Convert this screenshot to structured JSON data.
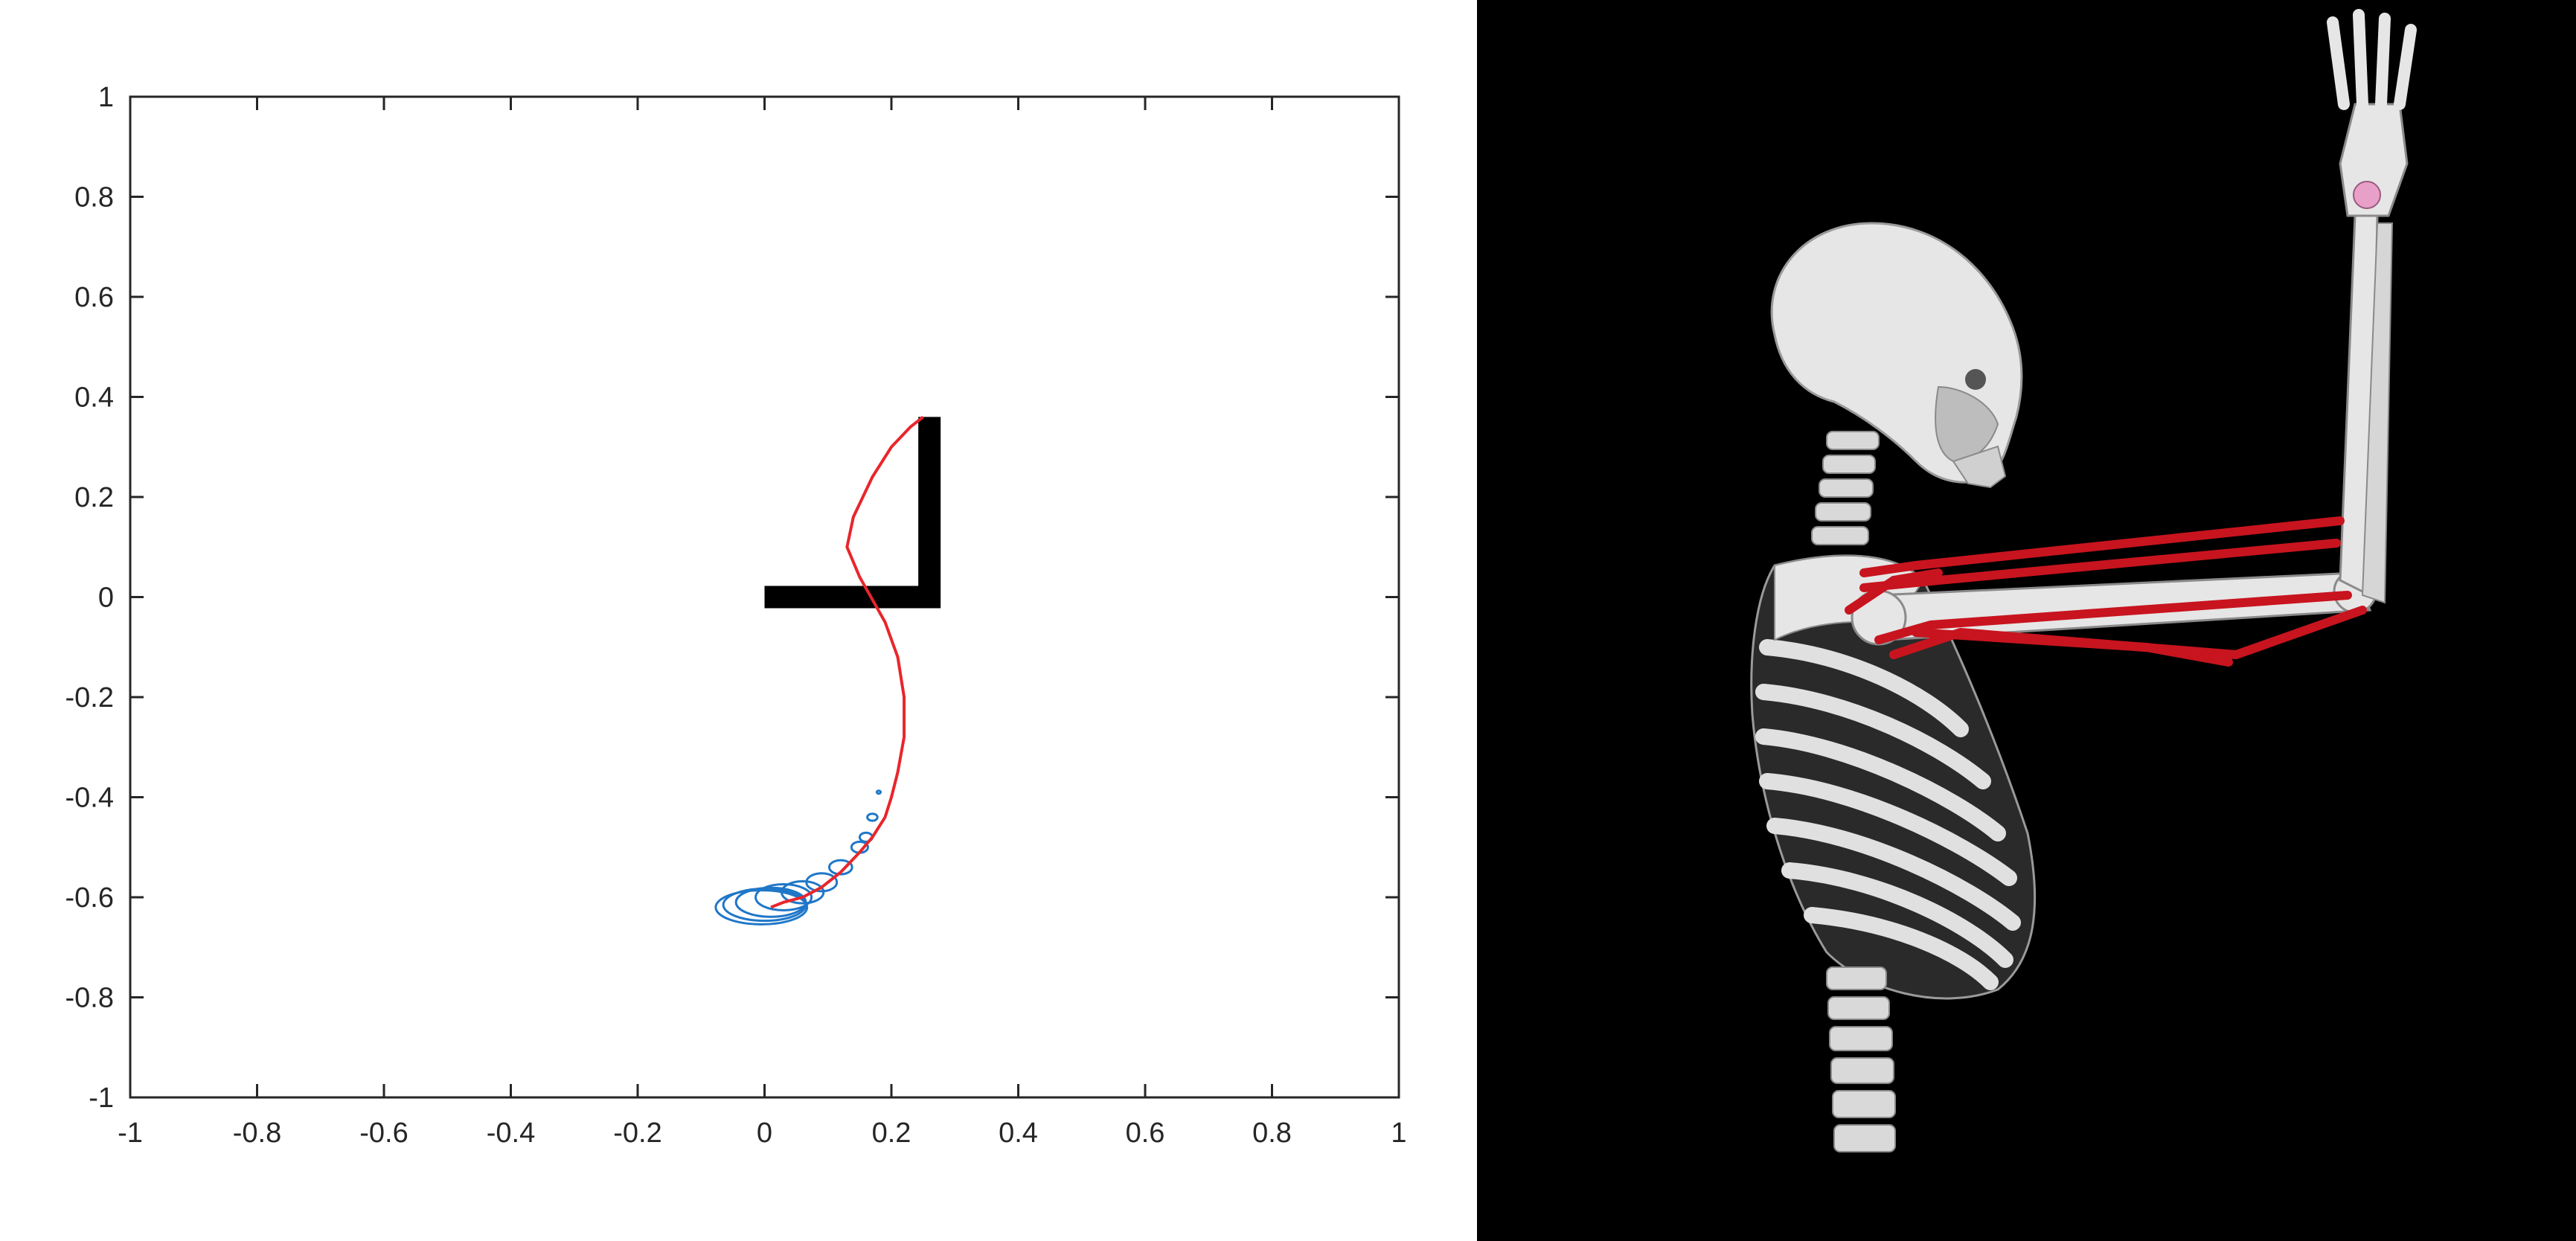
{
  "chart_data": {
    "type": "line",
    "title": "",
    "xlabel": "",
    "ylabel": "",
    "xlim": [
      -1,
      1
    ],
    "ylim": [
      -1,
      1
    ],
    "grid": false,
    "xticks": [
      -1,
      -0.8,
      -0.6,
      -0.4,
      -0.2,
      0,
      0.2,
      0.4,
      0.6,
      0.8,
      1
    ],
    "yticks": [
      -1,
      -0.8,
      -0.6,
      -0.4,
      -0.2,
      0,
      0.2,
      0.4,
      0.6,
      0.8,
      1
    ],
    "xtick_labels": [
      "-1",
      "-0.8",
      "-0.6",
      "-0.4",
      "-0.2",
      "0",
      "0.2",
      "0.4",
      "0.6",
      "0.8",
      "1"
    ],
    "ytick_labels": [
      "-1",
      "-0.8",
      "-0.6",
      "-0.4",
      "-0.2",
      "0",
      "0.2",
      "0.4",
      "0.6",
      "0.8",
      "1"
    ],
    "arm_links": {
      "color": "#000000",
      "points": [
        [
          0,
          0
        ],
        [
          0.26,
          0
        ],
        [
          0.26,
          0.36
        ]
      ]
    },
    "series": [
      {
        "color": "#e8262c",
        "x": [
          0.25,
          0.23,
          0.2,
          0.17,
          0.14,
          0.13,
          0.15,
          0.19,
          0.21,
          0.22,
          0.22,
          0.21,
          0.2,
          0.19,
          0.17,
          0.15,
          0.12,
          0.09,
          0.06,
          0.03,
          0.01
        ],
        "y": [
          0.36,
          0.34,
          0.3,
          0.24,
          0.16,
          0.1,
          0.04,
          -0.05,
          -0.12,
          -0.2,
          -0.28,
          -0.35,
          -0.4,
          -0.44,
          -0.48,
          -0.51,
          -0.55,
          -0.58,
          -0.6,
          -0.61,
          -0.62
        ]
      }
    ],
    "ellipses": {
      "color": "#1f77c8",
      "items": [
        {
          "cx": 0.18,
          "cy": -0.39,
          "rx": 0.003,
          "ry": 0.003
        },
        {
          "cx": 0.17,
          "cy": -0.44,
          "rx": 0.008,
          "ry": 0.007
        },
        {
          "cx": 0.16,
          "cy": -0.48,
          "rx": 0.01,
          "ry": 0.009
        },
        {
          "cx": 0.15,
          "cy": -0.5,
          "rx": 0.013,
          "ry": 0.011
        },
        {
          "cx": 0.12,
          "cy": -0.54,
          "rx": 0.018,
          "ry": 0.014
        },
        {
          "cx": 0.09,
          "cy": -0.57,
          "rx": 0.024,
          "ry": 0.018
        },
        {
          "cx": 0.06,
          "cy": -0.59,
          "rx": 0.033,
          "ry": 0.022
        },
        {
          "cx": 0.03,
          "cy": -0.6,
          "rx": 0.044,
          "ry": 0.026
        },
        {
          "cx": 0.01,
          "cy": -0.61,
          "rx": 0.055,
          "ry": 0.029
        },
        {
          "cx": 0.0,
          "cy": -0.615,
          "rx": 0.065,
          "ry": 0.032
        },
        {
          "cx": -0.005,
          "cy": -0.62,
          "rx": 0.072,
          "ry": 0.034
        }
      ]
    }
  },
  "simulation_view": {
    "background": "#000000",
    "bone_color": "#e6e6e6",
    "muscle_color": "#c8141e",
    "marker_color": "#e8a0c8"
  }
}
